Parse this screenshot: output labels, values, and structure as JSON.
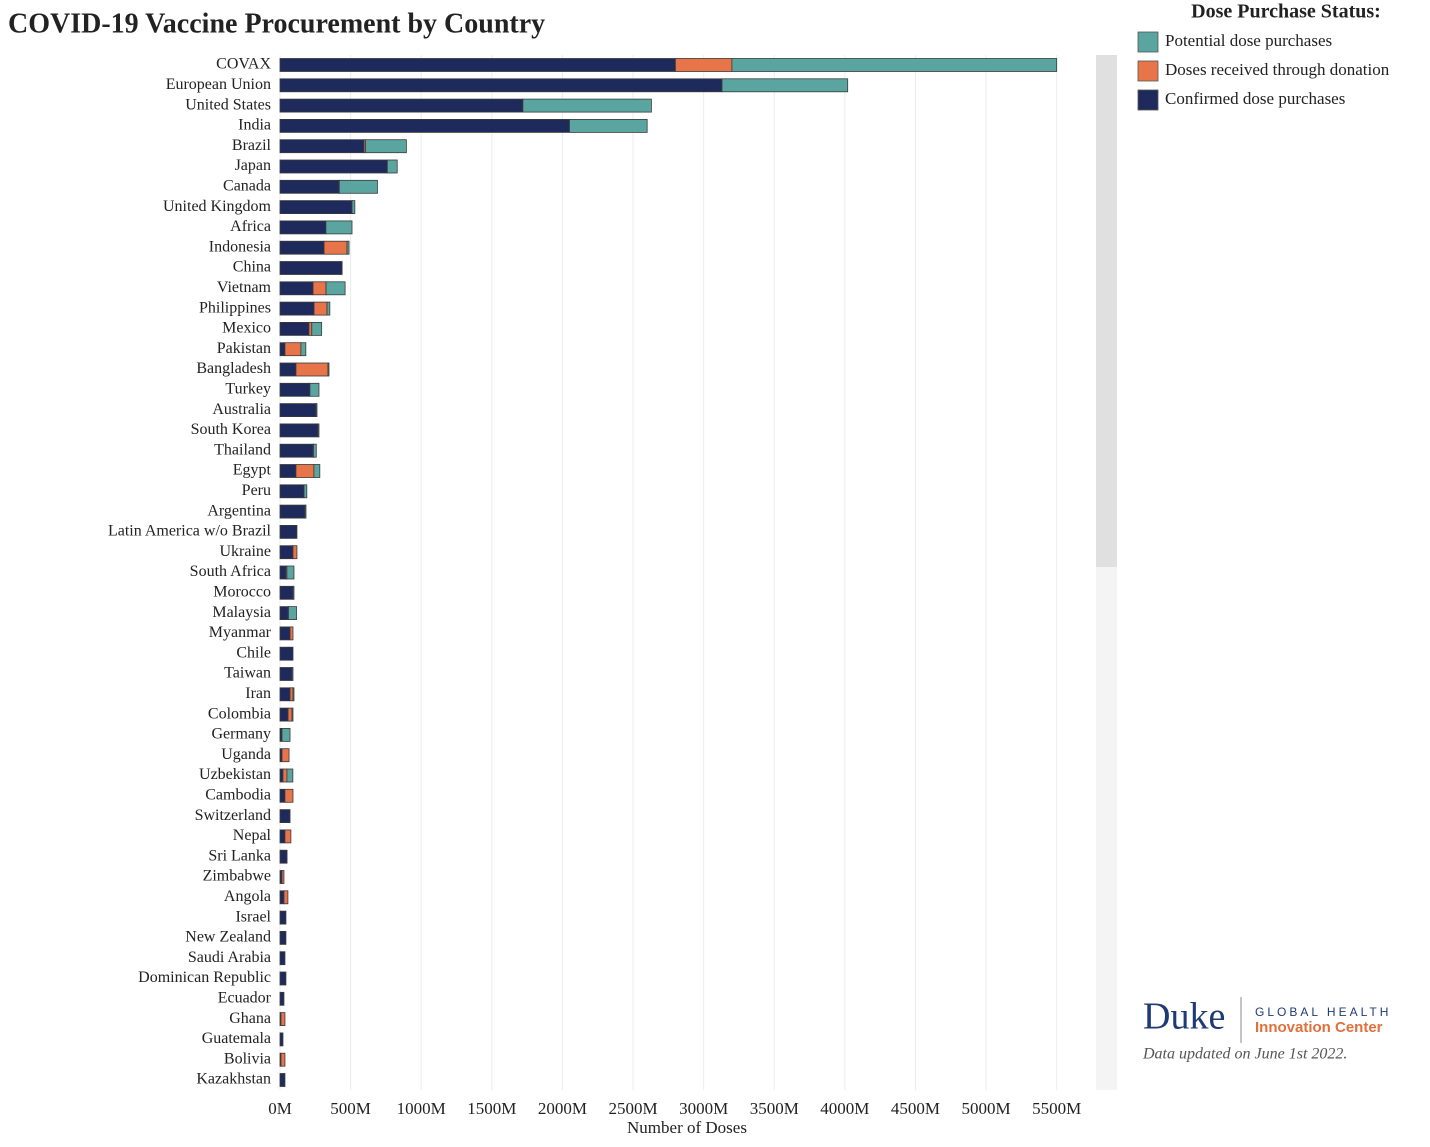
{
  "chart_data": {
    "type": "stacked-hbar",
    "title": "COVID-19 Vaccine Procurement by Country",
    "legend_title": "Dose Purchase Status:",
    "xlabel": "Number of Doses",
    "note": "Data updated on June 1st 2022.",
    "categories": [
      "COVAX",
      "European Union",
      "United States",
      "India",
      "Brazil",
      "Japan",
      "Canada",
      "United Kingdom",
      "Africa",
      "Indonesia",
      "China",
      "Vietnam",
      "Philippines",
      "Mexico",
      "Pakistan",
      "Bangladesh",
      "Turkey",
      "Australia",
      "South Korea",
      "Thailand",
      "Egypt",
      "Peru",
      "Argentina",
      "Latin America w/o Brazil",
      "Ukraine",
      "South Africa",
      "Morocco",
      "Malaysia",
      "Myanmar",
      "Chile",
      "Taiwan",
      "Iran",
      "Colombia",
      "Germany",
      "Uganda",
      "Uzbekistan",
      "Cambodia",
      "Switzerland",
      "Nepal",
      "Sri Lanka",
      "Zimbabwe",
      "Angola",
      "Israel",
      "New Zealand",
      "Saudi Arabia",
      "Dominican Republic",
      "Ecuador",
      "Ghana",
      "Guatemala",
      "Bolivia",
      "Kazakhstan"
    ],
    "series": [
      {
        "name": "Confirmed dose purchases",
        "color": "#1f2a5c",
        "values": [
          2800,
          3130,
          1720,
          2050,
          595,
          760,
          418,
          510,
          325,
          312,
          440,
          234,
          241,
          205,
          35,
          113,
          212,
          255,
          269,
          234,
          113,
          170,
          177,
          120,
          92,
          42,
          92,
          57,
          71,
          92,
          85,
          71,
          57,
          14,
          14,
          21,
          35,
          71,
          35,
          50,
          14,
          28,
          42,
          42,
          35,
          42,
          28,
          7,
          21,
          7,
          35
        ]
      },
      {
        "name": "Doses received through donation",
        "color": "#e8744a",
        "values": [
          400,
          0,
          0,
          0,
          10,
          0,
          2,
          0,
          0,
          163,
          0,
          92,
          92,
          20,
          113,
          227,
          0,
          0,
          0,
          3,
          127,
          0,
          0,
          0,
          28,
          7,
          0,
          3,
          21,
          0,
          0,
          21,
          28,
          0,
          50,
          28,
          57,
          0,
          42,
          0,
          14,
          28,
          0,
          0,
          0,
          0,
          0,
          28,
          0,
          28,
          0
        ]
      },
      {
        "name": "Potential dose purchases",
        "color": "#5aa5a0",
        "values": [
          2300,
          890,
          910,
          550,
          290,
          70,
          270,
          20,
          185,
          14,
          0,
          135,
          20,
          70,
          35,
          7,
          64,
          7,
          7,
          20,
          42,
          20,
          7,
          0,
          0,
          50,
          7,
          57,
          0,
          0,
          7,
          7,
          7,
          57,
          0,
          42,
          0,
          0,
          0,
          0,
          0,
          0,
          0,
          0,
          0,
          0,
          0,
          0,
          0,
          0,
          0
        ]
      }
    ],
    "xlim": [
      0,
      5750
    ],
    "xticks": [
      {
        "value": 0,
        "label": "0M"
      },
      {
        "value": 500,
        "label": "500M"
      },
      {
        "value": 1000,
        "label": "1000M"
      },
      {
        "value": 1500,
        "label": "1500M"
      },
      {
        "value": 2000,
        "label": "2000M"
      },
      {
        "value": 2500,
        "label": "2500M"
      },
      {
        "value": 3000,
        "label": "3000M"
      },
      {
        "value": 3500,
        "label": "3500M"
      },
      {
        "value": 4000,
        "label": "4000M"
      },
      {
        "value": 4500,
        "label": "4500M"
      },
      {
        "value": 5000,
        "label": "5000M"
      },
      {
        "value": 5500,
        "label": "5500M"
      }
    ],
    "grid": true
  },
  "logo": {
    "name": "Duke",
    "line1": "GLOBAL HEALTH",
    "line2": "Innovation Center"
  }
}
